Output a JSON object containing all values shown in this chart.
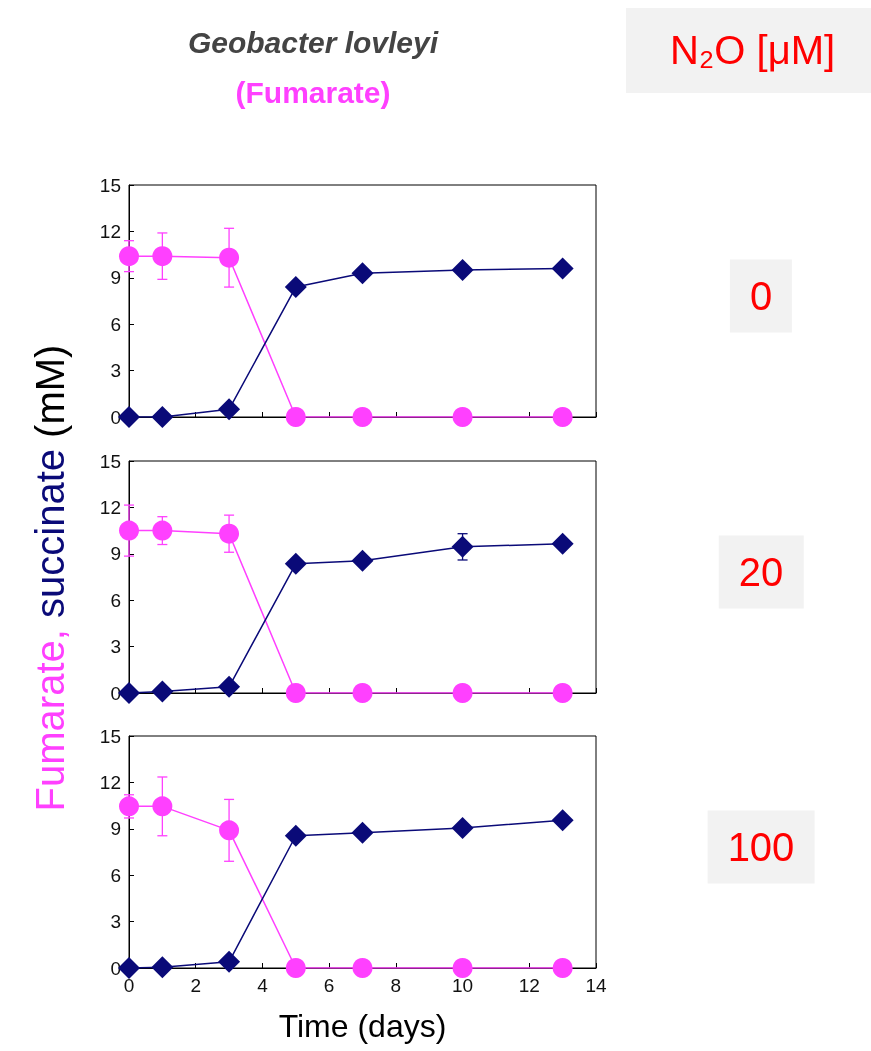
{
  "chart_data": [
    {
      "type": "line",
      "title": "Geobacter lovleyi",
      "subtitle": "(Fumarate)",
      "annotations": [
        "N₂O [μM]",
        "0"
      ],
      "tick_labels": "y",
      "xlim": [
        0,
        14
      ],
      "xticks": [
        0,
        2,
        4,
        6,
        8,
        10,
        12,
        14
      ],
      "ylim": [
        0,
        15
      ],
      "yticks": [
        0,
        3,
        6,
        9,
        12,
        15
      ],
      "series": [
        {
          "color": "#ff40ff",
          "marker": "circle",
          "x": [
            0,
            1,
            3,
            5,
            7,
            10,
            13
          ],
          "values": [
            10.4,
            10.4,
            10.3,
            0,
            0,
            0,
            0
          ],
          "errors": [
            1.0,
            1.5,
            1.9,
            null,
            null,
            null,
            null
          ]
        },
        {
          "color": "#0a0a78",
          "marker": "diamond",
          "x": [
            0,
            1,
            3,
            5,
            7,
            10,
            13
          ],
          "values": [
            0,
            0,
            0.5,
            8.4,
            9.3,
            9.5,
            9.6
          ]
        }
      ]
    },
    {
      "type": "line",
      "ylabel": "Fumarate, succinate (mM)",
      "annotations": [
        "20"
      ],
      "tick_labels": "y",
      "xlim": [
        0,
        14
      ],
      "xticks": [
        0,
        2,
        4,
        6,
        8,
        10,
        12,
        14
      ],
      "ylim": [
        0,
        15
      ],
      "yticks": [
        0,
        3,
        6,
        9,
        12,
        15
      ],
      "series": [
        {
          "color": "#ff40ff",
          "marker": "circle",
          "x": [
            0,
            1,
            3,
            5,
            7,
            10,
            13
          ],
          "values": [
            10.5,
            10.5,
            10.3,
            0,
            0,
            0,
            0
          ],
          "errors": [
            1.65,
            0.9,
            1.2,
            null,
            null,
            null,
            null
          ]
        },
        {
          "color": "#0a0a78",
          "marker": "diamond",
          "x": [
            0,
            1,
            3,
            5,
            7,
            10,
            13
          ],
          "values": [
            0,
            0.1,
            0.4,
            8.35,
            8.55,
            9.45,
            9.65
          ],
          "errors": [
            null,
            null,
            null,
            null,
            null,
            0.85,
            null
          ]
        }
      ]
    },
    {
      "type": "line",
      "xlabel": "Time (days)",
      "annotations": [
        "100"
      ],
      "xlim": [
        0,
        14
      ],
      "xticks": [
        0,
        2,
        4,
        6,
        8,
        10,
        12,
        14
      ],
      "ylim": [
        0,
        15
      ],
      "yticks": [
        0,
        3,
        6,
        9,
        12,
        15
      ],
      "series": [
        {
          "color": "#ff40ff",
          "marker": "circle",
          "x": [
            0,
            1,
            3,
            5,
            7,
            10,
            13
          ],
          "values": [
            10.45,
            10.45,
            8.9,
            0,
            0,
            0,
            0
          ],
          "errors": [
            0.75,
            1.9,
            2.0,
            null,
            null,
            null,
            null
          ]
        },
        {
          "color": "#0a0a78",
          "marker": "diamond",
          "x": [
            0,
            1,
            3,
            5,
            7,
            10,
            13
          ],
          "values": [
            0,
            0.05,
            0.4,
            8.55,
            8.75,
            9.05,
            9.55
          ]
        }
      ]
    }
  ]
}
